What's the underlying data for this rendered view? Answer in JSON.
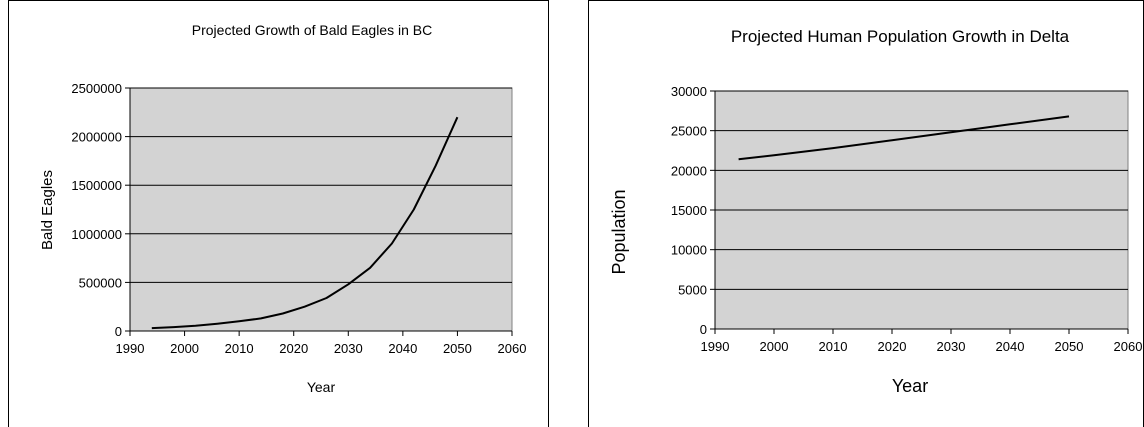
{
  "chart_data": [
    {
      "type": "line",
      "title": "Projected Growth of Bald Eagles in BC",
      "xlabel": "Year",
      "ylabel": "Bald Eagles",
      "xlim": [
        1990,
        2060
      ],
      "ylim": [
        0,
        2500000
      ],
      "x_ticks": [
        1990,
        2000,
        2010,
        2020,
        2030,
        2040,
        2050,
        2060
      ],
      "y_ticks": [
        0,
        500000,
        1000000,
        1500000,
        2000000,
        2500000
      ],
      "grid": "horizontal major",
      "legend": "none",
      "plot_area_color": "#d3d3d3",
      "series": [
        {
          "x": [
            1994,
            1998,
            2002,
            2006,
            2010,
            2014,
            2018,
            2022,
            2026,
            2030,
            2034,
            2038,
            2042,
            2046,
            2050
          ],
          "values": [
            30000,
            40000,
            55000,
            75000,
            100000,
            130000,
            180000,
            250000,
            340000,
            480000,
            650000,
            900000,
            1250000,
            1700000,
            2200000
          ]
        }
      ]
    },
    {
      "type": "line",
      "title": "Projected Human Population Growth in Delta",
      "xlabel": "Year",
      "ylabel": "Population",
      "xlim": [
        1990,
        2060
      ],
      "ylim": [
        0,
        30000
      ],
      "x_ticks": [
        1990,
        2000,
        2010,
        2020,
        2030,
        2040,
        2050,
        2060
      ],
      "y_ticks": [
        0,
        5000,
        10000,
        15000,
        20000,
        25000,
        30000
      ],
      "grid": "horizontal major",
      "legend": "none",
      "plot_area_color": "#d3d3d3",
      "series": [
        {
          "x": [
            1994,
            2000,
            2010,
            2020,
            2030,
            2040,
            2050
          ],
          "values": [
            21400,
            21900,
            22800,
            23800,
            24800,
            25800,
            26800
          ]
        }
      ]
    }
  ]
}
